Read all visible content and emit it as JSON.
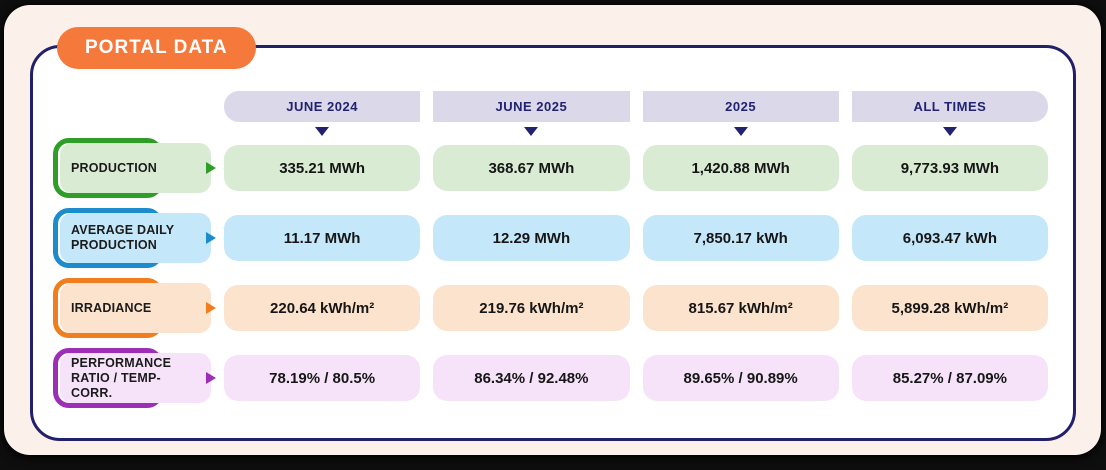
{
  "badge": {
    "label": "PORTAL DATA"
  },
  "chart_data": {
    "type": "table",
    "title": "PORTAL DATA",
    "columns": [
      "JUNE 2024",
      "JUNE 2025",
      "2025",
      "ALL TIMES"
    ],
    "rows": [
      {
        "label": "PRODUCTION",
        "label_lines": [
          "PRODUCTION"
        ],
        "values": [
          "335.21 MWh",
          "368.67 MWh",
          "1,420.88 MWh",
          "9,773.93 MWh"
        ]
      },
      {
        "label": "AVERAGE DAILY PRODUCTION",
        "label_lines": [
          "AVERAGE DAILY",
          "PRODUCTION"
        ],
        "values": [
          "11.17 MWh",
          "12.29 MWh",
          "7,850.17 kWh",
          "6,093.47 kWh"
        ]
      },
      {
        "label": "IRRADIANCE",
        "label_lines": [
          "IRRADIANCE"
        ],
        "values": [
          "220.64 kWh/m²",
          "219.76 kWh/m²",
          "815.67 kWh/m²",
          "5,899.28 kWh/m²"
        ]
      },
      {
        "label": "PERFORMANCE RATIO / TEMP-CORR.",
        "label_lines": [
          "PERFORMANCE",
          "RATIO / TEMP-CORR."
        ],
        "values": [
          "78.19% / 80.5%",
          "86.34% / 92.48%",
          "89.65% / 90.89%",
          "85.27% / 87.09%"
        ]
      }
    ]
  },
  "colors": {
    "card_bg": "#FBF1EA",
    "badge_bg": "#F5793B",
    "panel_border": "#221F6B",
    "header_bg": "#DBD9E9",
    "header_text": "#232270",
    "rows": [
      {
        "accent": "#2E9E27",
        "fill": "#D9ECD3"
      },
      {
        "accent": "#1D8CCD",
        "fill": "#C4E7FA"
      },
      {
        "accent": "#F07D1E",
        "fill": "#FCE3CD"
      },
      {
        "accent": "#9C2FB5",
        "fill": "#F6E3FA"
      }
    ]
  },
  "icons": {
    "column-pointer-icon": "triangle-down",
    "row-pointer-icon": "triangle-right"
  }
}
